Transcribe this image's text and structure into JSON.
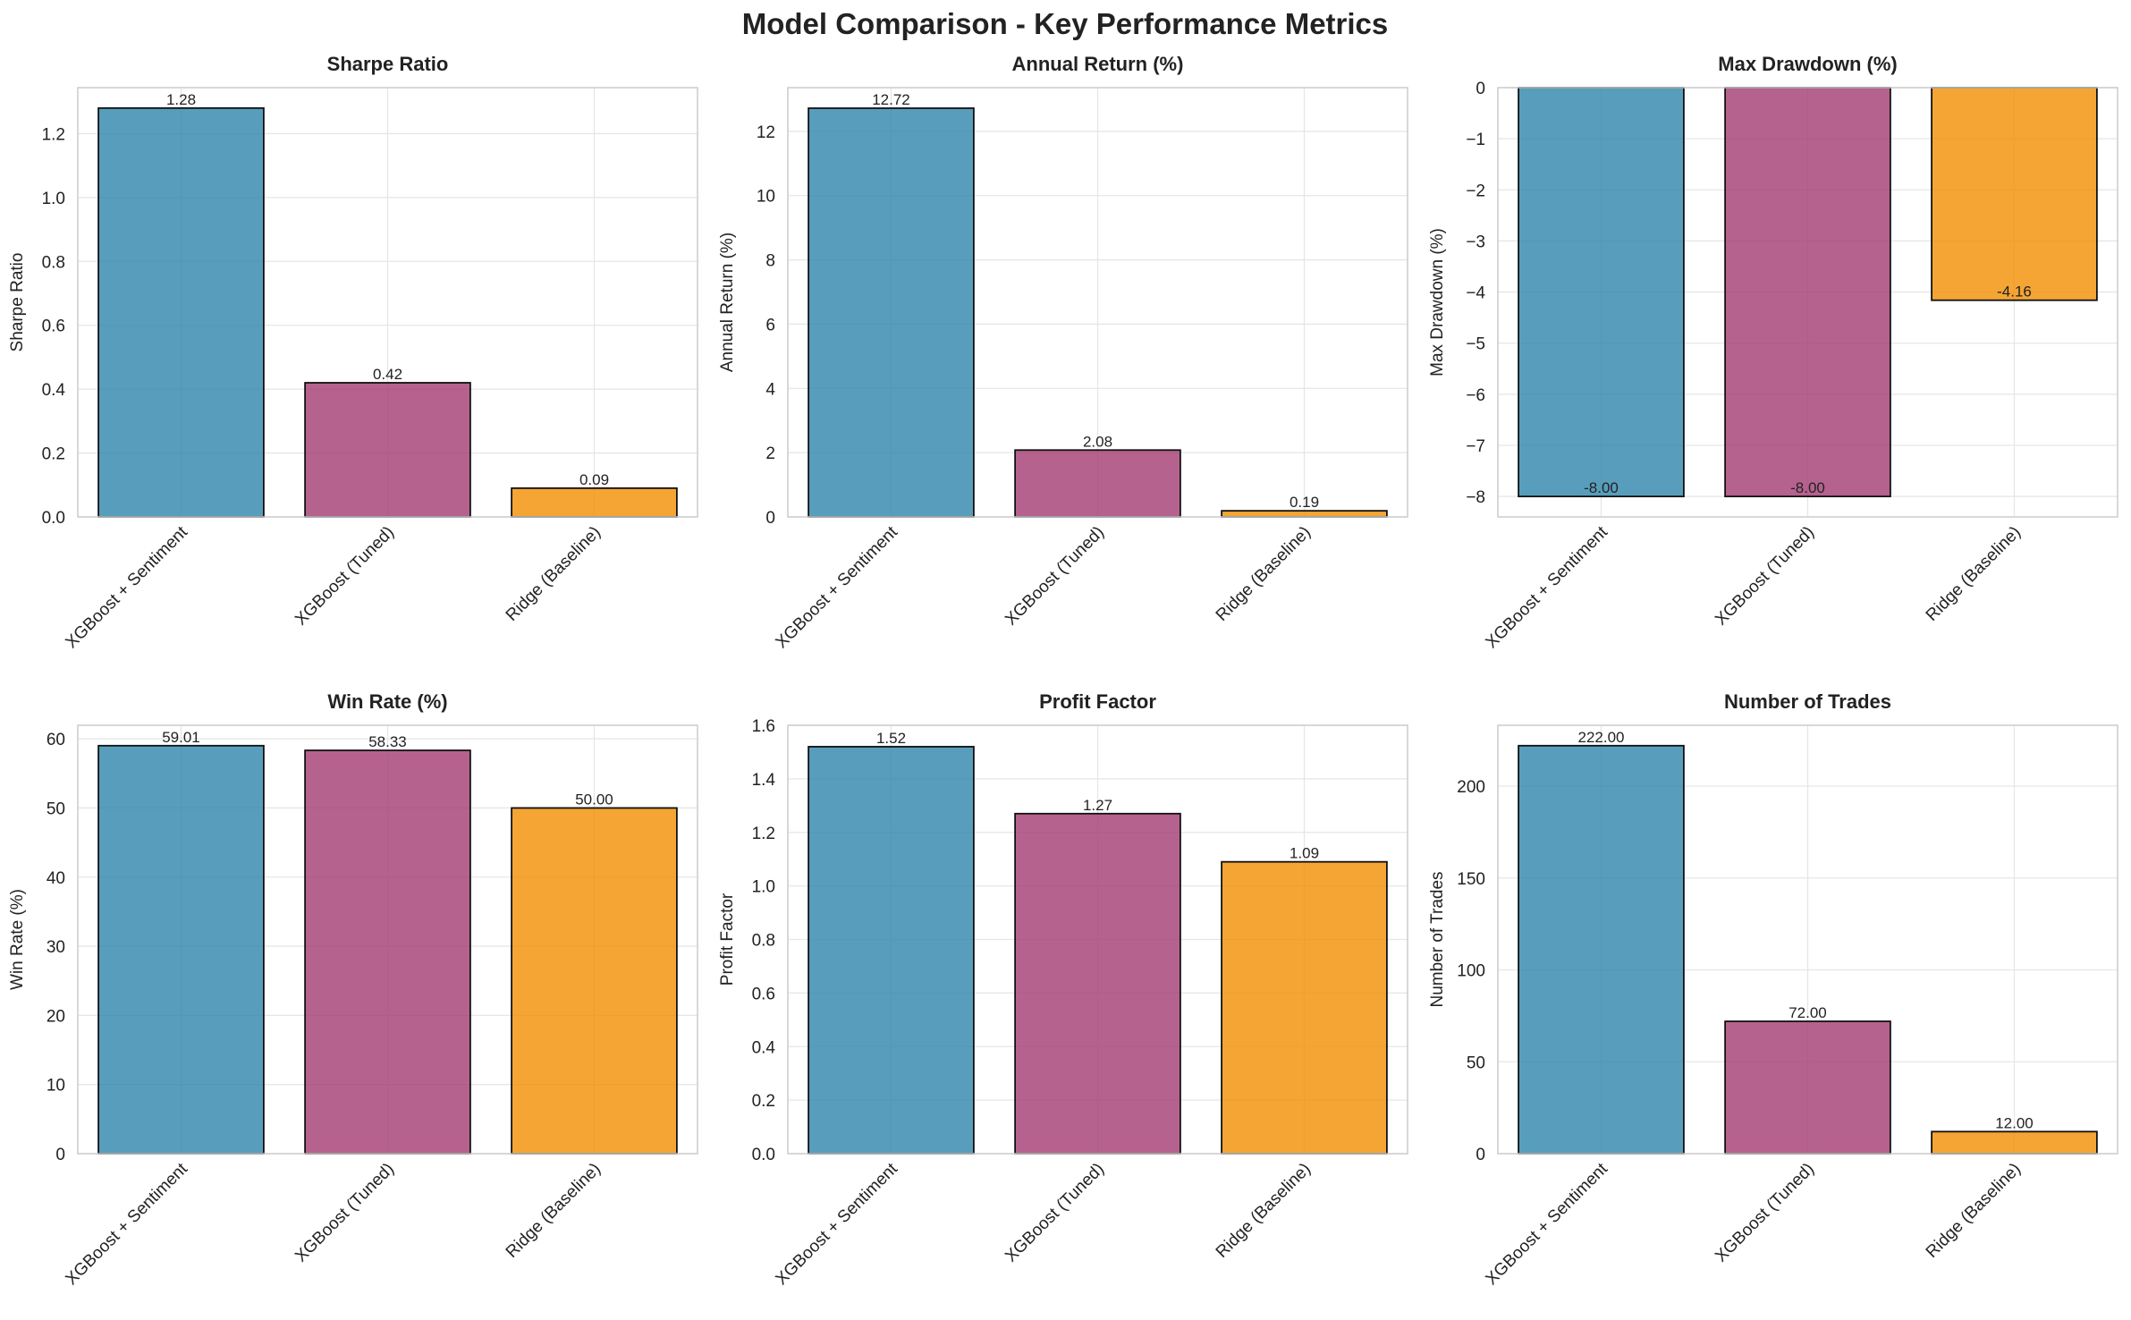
{
  "title": "Model Comparison - Key Performance Metrics",
  "colors": {
    "XGBoost + Sentiment": "#2e86ab",
    "XGBoost (Tuned)": "#a23b72",
    "Ridge (Baseline)": "#f18f01"
  },
  "chart_data": [
    {
      "type": "bar",
      "title": "Sharpe Ratio",
      "ylabel": "Sharpe Ratio",
      "categories": [
        "XGBoost + Sentiment",
        "XGBoost (Tuned)",
        "Ridge (Baseline)"
      ],
      "values": [
        1.28,
        0.42,
        0.09
      ],
      "value_labels": [
        "1.28",
        "0.42",
        "0.09"
      ],
      "ylim": [
        0,
        1.344
      ],
      "yticks": [
        0.0,
        0.2,
        0.4,
        0.6,
        0.8,
        1.0,
        1.2
      ],
      "ytick_labels": [
        "0.0",
        "0.2",
        "0.4",
        "0.6",
        "0.8",
        "1.0",
        "1.2"
      ]
    },
    {
      "type": "bar",
      "title": "Annual Return (%)",
      "ylabel": "Annual Return (%)",
      "categories": [
        "XGBoost + Sentiment",
        "XGBoost (Tuned)",
        "Ridge (Baseline)"
      ],
      "values": [
        12.72,
        2.08,
        0.19
      ],
      "value_labels": [
        "12.72",
        "2.08",
        "0.19"
      ],
      "ylim": [
        0,
        13.36
      ],
      "yticks": [
        0,
        2,
        4,
        6,
        8,
        10,
        12
      ],
      "ytick_labels": [
        "0",
        "2",
        "4",
        "6",
        "8",
        "10",
        "12"
      ]
    },
    {
      "type": "bar",
      "title": "Max Drawdown (%)",
      "ylabel": "Max Drawdown (%)",
      "categories": [
        "XGBoost + Sentiment",
        "XGBoost (Tuned)",
        "Ridge (Baseline)"
      ],
      "values": [
        -8.0,
        -8.0,
        -4.16
      ],
      "value_labels": [
        "-8.00",
        "-8.00",
        "-4.16"
      ],
      "ylim": [
        -8.4,
        0
      ],
      "yticks": [
        0,
        -1,
        -2,
        -3,
        -4,
        -5,
        -6,
        -7,
        -8
      ],
      "ytick_labels": [
        "0",
        "−1",
        "−2",
        "−3",
        "−4",
        "−5",
        "−6",
        "−7",
        "−8"
      ]
    },
    {
      "type": "bar",
      "title": "Win Rate (%)",
      "ylabel": "Win Rate (%)",
      "categories": [
        "XGBoost + Sentiment",
        "XGBoost (Tuned)",
        "Ridge (Baseline)"
      ],
      "values": [
        59.01,
        58.33,
        50.0
      ],
      "value_labels": [
        "59.01",
        "58.33",
        "50.00"
      ],
      "ylim": [
        0,
        61.96
      ],
      "yticks": [
        0,
        10,
        20,
        30,
        40,
        50,
        60
      ],
      "ytick_labels": [
        "0",
        "10",
        "20",
        "30",
        "40",
        "50",
        "60"
      ]
    },
    {
      "type": "bar",
      "title": "Profit Factor",
      "ylabel": "Profit Factor",
      "categories": [
        "XGBoost + Sentiment",
        "XGBoost (Tuned)",
        "Ridge (Baseline)"
      ],
      "values": [
        1.52,
        1.27,
        1.09
      ],
      "value_labels": [
        "1.52",
        "1.27",
        "1.09"
      ],
      "ylim": [
        0,
        1.6
      ],
      "yticks": [
        0.0,
        0.2,
        0.4,
        0.6,
        0.8,
        1.0,
        1.2,
        1.4,
        1.6
      ],
      "ytick_labels": [
        "0.0",
        "0.2",
        "0.4",
        "0.6",
        "0.8",
        "1.0",
        "1.2",
        "1.4",
        "1.6"
      ]
    },
    {
      "type": "bar",
      "title": "Number of Trades",
      "ylabel": "Number of Trades",
      "categories": [
        "XGBoost + Sentiment",
        "XGBoost (Tuned)",
        "Ridge (Baseline)"
      ],
      "values": [
        222,
        72,
        12
      ],
      "value_labels": [
        "222.00",
        "72.00",
        "12.00"
      ],
      "ylim": [
        0,
        233.1
      ],
      "yticks": [
        0,
        50,
        100,
        150,
        200
      ],
      "ytick_labels": [
        "0",
        "50",
        "100",
        "150",
        "200"
      ]
    }
  ]
}
